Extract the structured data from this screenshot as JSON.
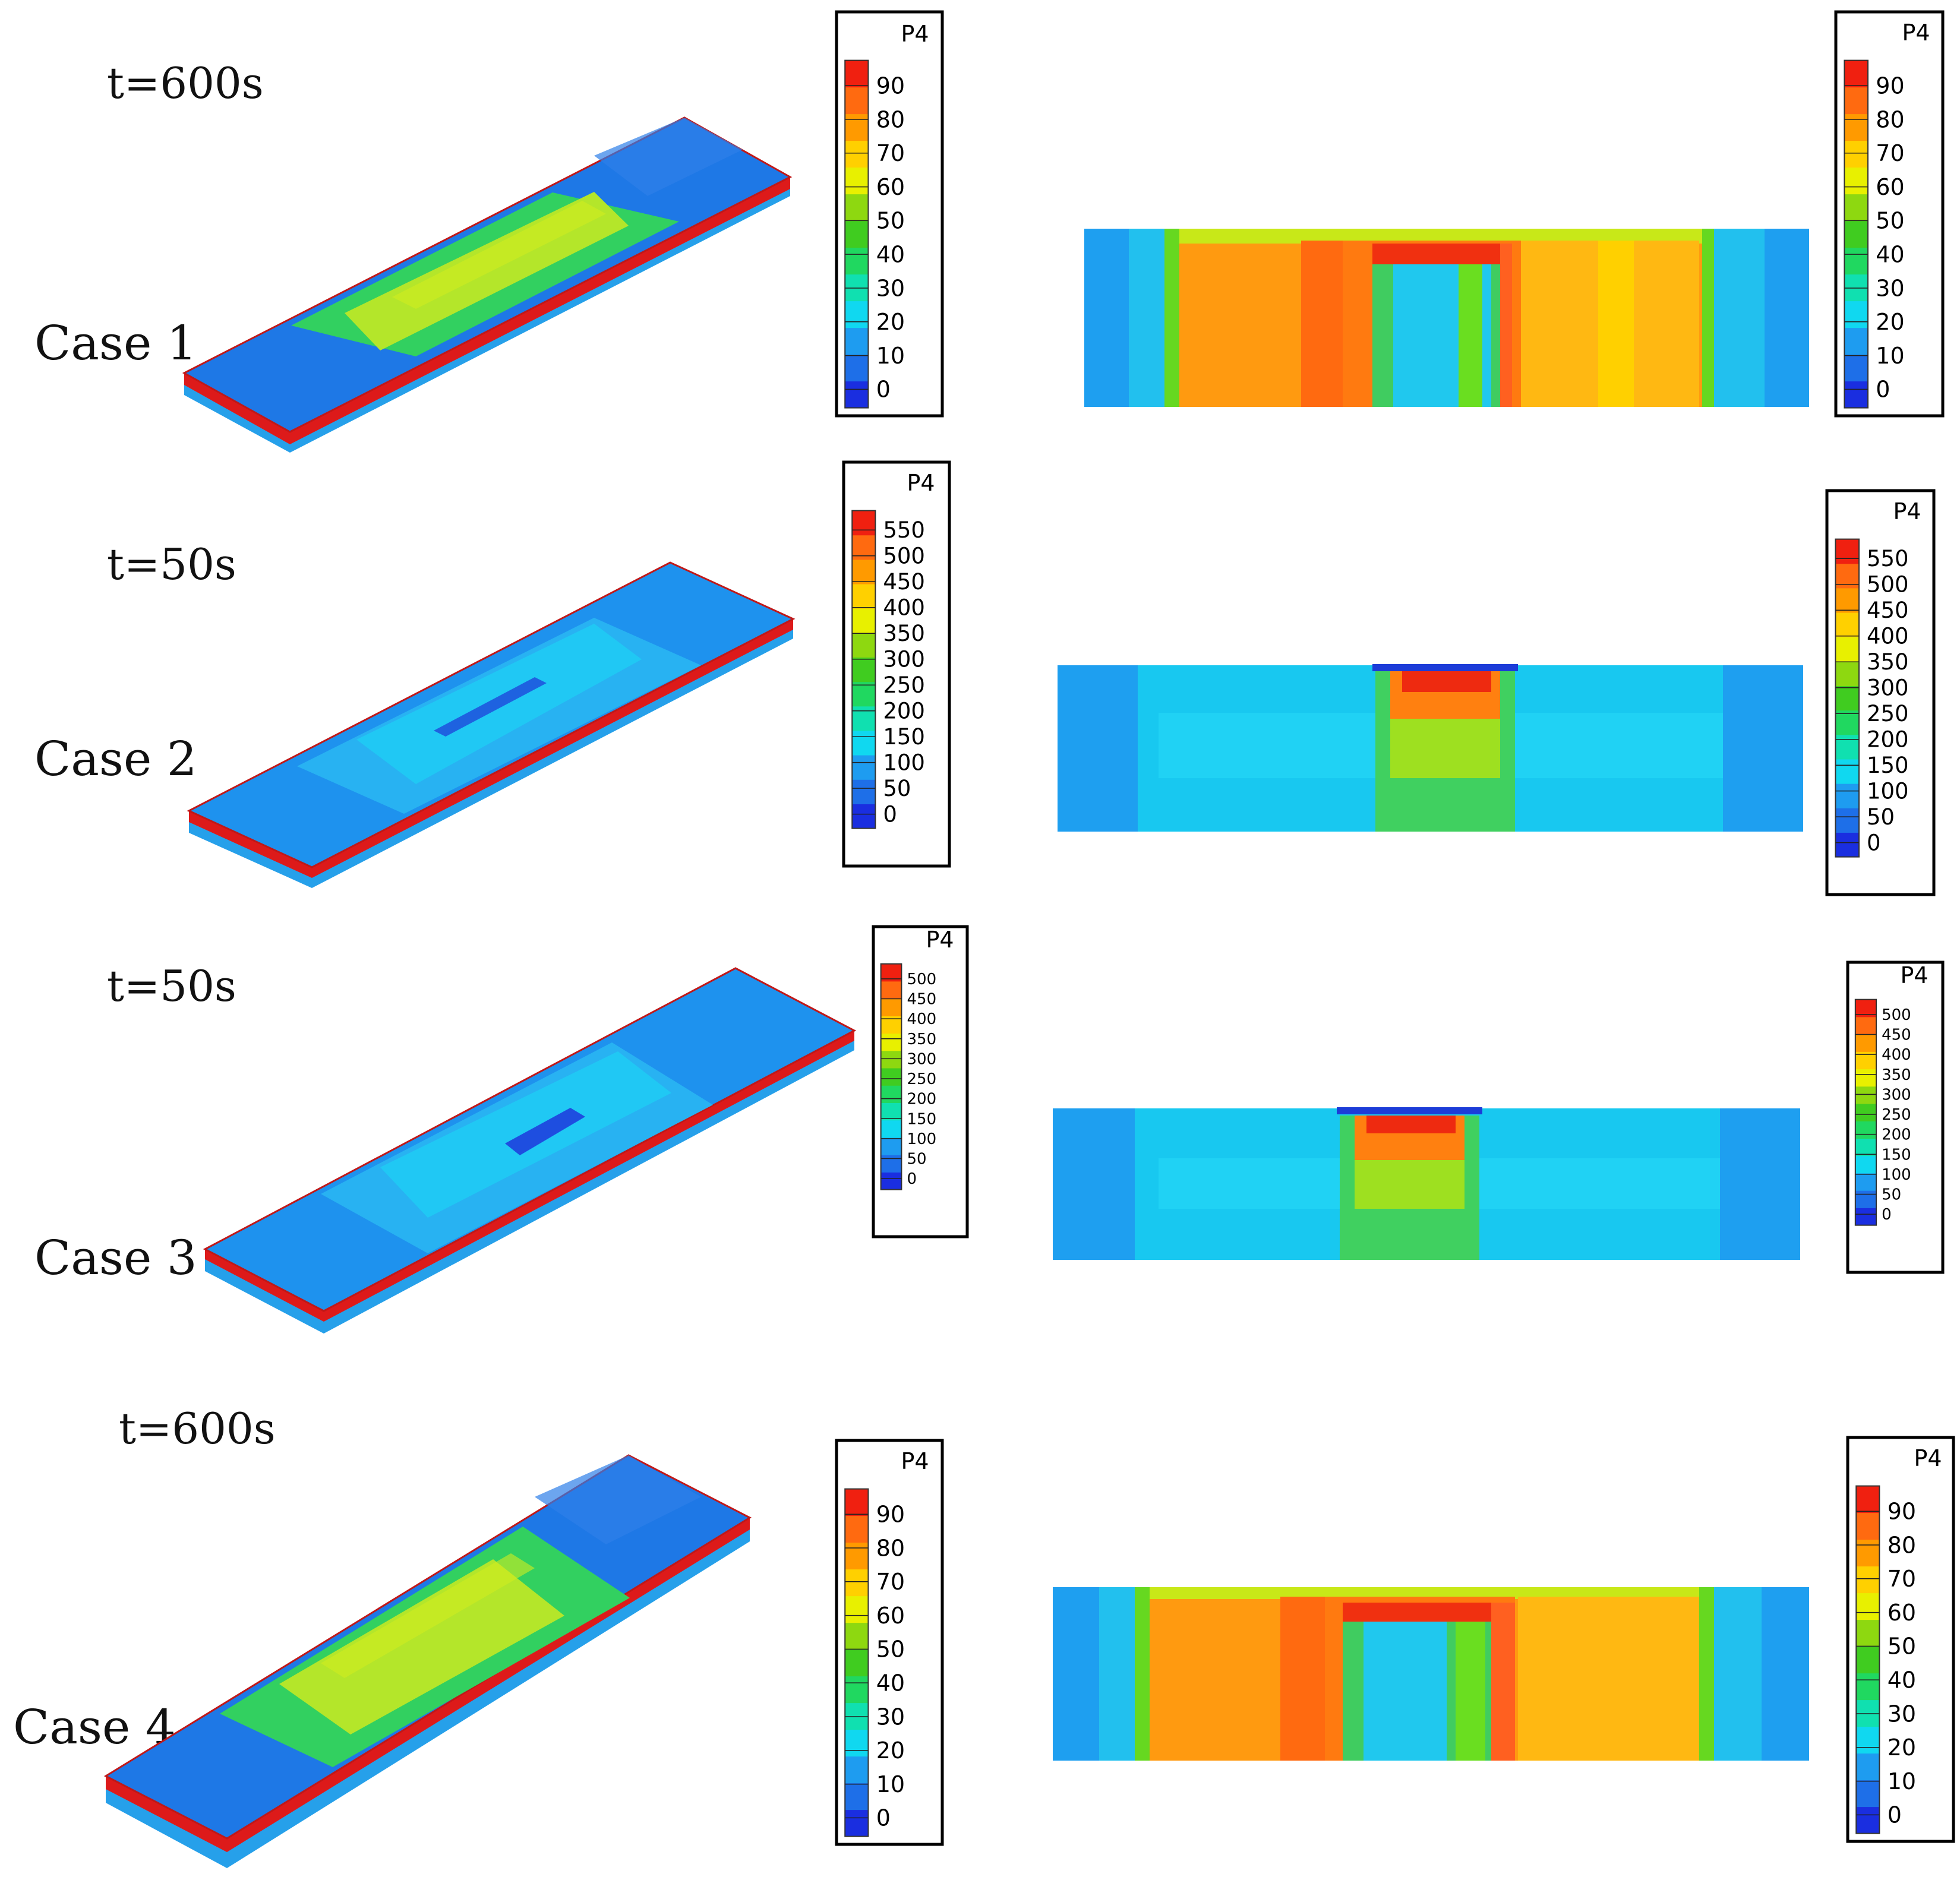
{
  "rows": [
    {
      "case_label": "Case 1",
      "time_label": "t=600s",
      "legend_left": {
        "title": "P4",
        "ticks": [
          "90",
          "80",
          "70",
          "60",
          "50",
          "40",
          "30",
          "20",
          "10",
          "0"
        ]
      },
      "legend_right": {
        "title": "P4",
        "ticks": [
          "90",
          "80",
          "70",
          "60",
          "50",
          "40",
          "30",
          "20",
          "10",
          "0"
        ]
      }
    },
    {
      "case_label": "Case 2",
      "time_label": "t=50s",
      "legend_left": {
        "title": "P4",
        "ticks": [
          "550",
          "500",
          "450",
          "400",
          "350",
          "300",
          "250",
          "200",
          "150",
          "100",
          "50",
          "0"
        ]
      },
      "legend_right": {
        "title": "P4",
        "ticks": [
          "550",
          "500",
          "450",
          "400",
          "350",
          "300",
          "250",
          "200",
          "150",
          "100",
          "50",
          "0"
        ]
      }
    },
    {
      "case_label": "Case 3",
      "time_label": "t=50s",
      "legend_left": {
        "title": "P4",
        "ticks": [
          "500",
          "450",
          "400",
          "350",
          "300",
          "250",
          "200",
          "150",
          "100",
          "50",
          "0"
        ]
      },
      "legend_right": {
        "title": "P4",
        "ticks": [
          "500",
          "450",
          "400",
          "350",
          "300",
          "250",
          "200",
          "150",
          "100",
          "50",
          "0"
        ]
      }
    },
    {
      "case_label": "Case 4",
      "time_label": "t=600s",
      "legend_left": {
        "title": "P4",
        "ticks": [
          "90",
          "80",
          "70",
          "60",
          "50",
          "40",
          "30",
          "20",
          "10",
          "0"
        ]
      },
      "legend_right": {
        "title": "P4",
        "ticks": [
          "90",
          "80",
          "70",
          "60",
          "50",
          "40",
          "30",
          "20",
          "10",
          "0"
        ]
      }
    }
  ],
  "colormap": [
    "#1a2ee0",
    "#1e6fe8",
    "#1e9cf0",
    "#10d8f0",
    "#10e0b0",
    "#20d860",
    "#40cc20",
    "#8ed810",
    "#e8f000",
    "#ffd000",
    "#ff9a00",
    "#ff6a10",
    "#f02010"
  ]
}
